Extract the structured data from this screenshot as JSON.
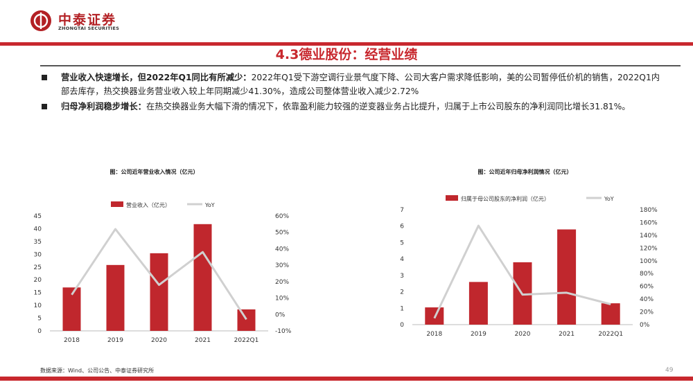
{
  "header": {
    "logo_cn": "中泰证券",
    "logo_en": "ZHONGTAI SECURITIES",
    "title": "4.3德业股份：经营业绩"
  },
  "bullets": [
    {
      "bold": "营业收入快速增长，但2022年Q1同比有所减少：",
      "text": "2022年Q1受下游空调行业景气度下降、公司大客户需求降低影响，美的公司暂停低价机的销售，2022Q1内部去库存，热交换器业务营业收入较上年同期减少41.30%，造成公司整体营业收入减少2.72%"
    },
    {
      "bold": "归母净利润稳步增长：",
      "text": "在热交换器业务大幅下滑的情况下，依靠盈利能力较强的逆变器业务占比提升，归属于上市公司股东的净利润同比增长31.81%。"
    }
  ],
  "colors": {
    "accent": "#c8282e",
    "bar": "#c0272d",
    "line": "#d0d0d0"
  },
  "chart_data": [
    {
      "type": "bar",
      "title": "图：公司近年营业收入情况（亿元）",
      "categories": [
        "2018",
        "2019",
        "2020",
        "2021",
        "2022Q1"
      ],
      "series": [
        {
          "name": "营业收入（亿元）",
          "type": "bar",
          "axis": "left",
          "values": [
            17.0,
            25.8,
            30.4,
            41.8,
            8.4
          ]
        },
        {
          "name": "YoY",
          "type": "line",
          "axis": "right",
          "values": [
            0.12,
            0.52,
            0.18,
            0.38,
            -0.03
          ]
        }
      ],
      "y_left": {
        "min": 0,
        "max": 45,
        "step": 5,
        "ticks": [
          "0",
          "5",
          "10",
          "15",
          "20",
          "25",
          "30",
          "35",
          "40",
          "45"
        ]
      },
      "y_right": {
        "min": -0.1,
        "max": 0.6,
        "step": 0.1,
        "ticks": [
          "-10%",
          "0%",
          "10%",
          "20%",
          "30%",
          "40%",
          "50%",
          "60%"
        ]
      },
      "legend": "top-center",
      "grid": false
    },
    {
      "type": "bar",
      "title": "图：公司近年归母净利润情况（亿元）",
      "categories": [
        "2018",
        "2019",
        "2020",
        "2021",
        "2022Q1"
      ],
      "series": [
        {
          "name": "归属于母公司股东的净利润（亿元）",
          "type": "bar",
          "axis": "left",
          "values": [
            1.05,
            2.6,
            3.8,
            5.8,
            1.3
          ]
        },
        {
          "name": "YoY",
          "type": "line",
          "axis": "right",
          "values": [
            0.1,
            1.55,
            0.47,
            0.5,
            0.32
          ]
        }
      ],
      "y_left": {
        "min": 0,
        "max": 7,
        "step": 1,
        "ticks": [
          "0",
          "1",
          "2",
          "3",
          "4",
          "5",
          "6",
          "7"
        ]
      },
      "y_right": {
        "min": 0,
        "max": 1.8,
        "step": 0.2,
        "ticks": [
          "0%",
          "20%",
          "40%",
          "60%",
          "80%",
          "100%",
          "120%",
          "140%",
          "160%",
          "180%"
        ]
      },
      "legend": "top-center",
      "grid": false
    }
  ],
  "footer": {
    "source": "数据来源：Wind、公司公告、中泰证券研究所",
    "page": "49"
  }
}
